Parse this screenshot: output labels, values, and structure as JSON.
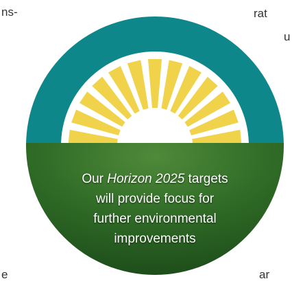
{
  "fragments": {
    "top_left": "ns-",
    "top_right": "rat",
    "right_upper": "u",
    "bottom_left": "e",
    "bottom_right": "ar"
  },
  "callout": {
    "line1_start": "Our",
    "line1_italic": "Horizon 2025",
    "line1_end": "targets",
    "line2": "will provide focus for",
    "line3": "further environmental",
    "line4": "improvements"
  }
}
